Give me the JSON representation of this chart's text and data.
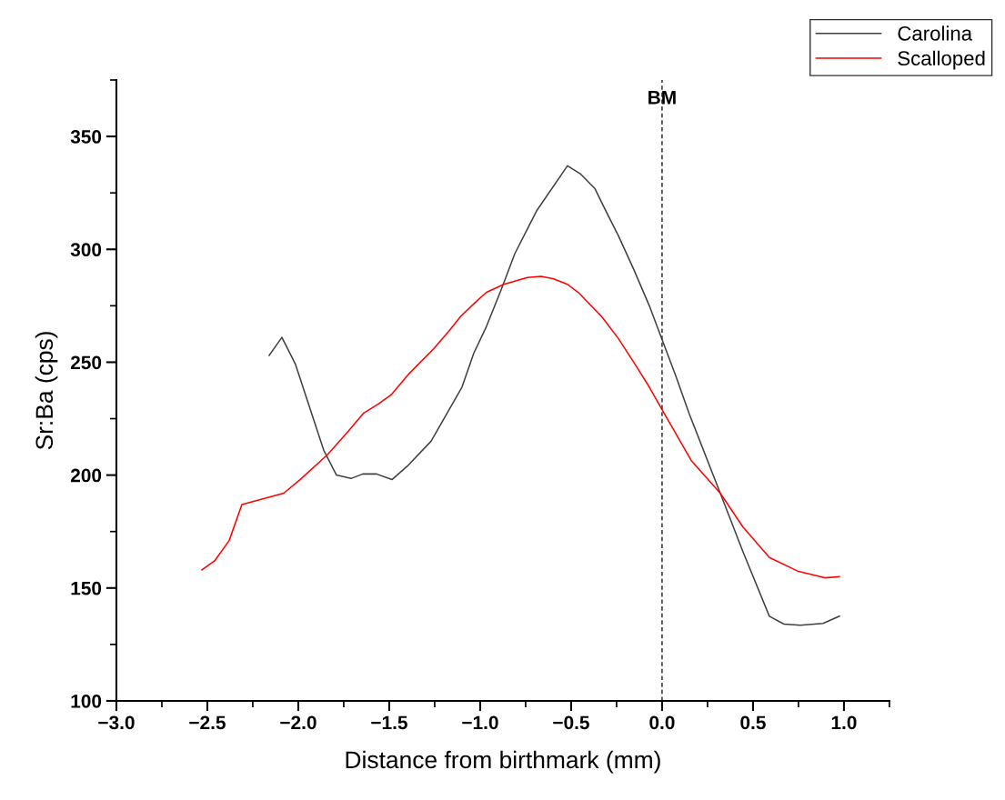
{
  "chart_data": {
    "type": "line",
    "xlabel": "Distance from birthmark (mm)",
    "ylabel": "Sr:Ba (cps)",
    "xlim": [
      -3.0,
      1.25
    ],
    "ylim": [
      100,
      375
    ],
    "xticks": [
      {
        "value": -3.0,
        "label": "−3.0"
      },
      {
        "value": -2.5,
        "label": "−2.5"
      },
      {
        "value": -2.0,
        "label": "−2.0"
      },
      {
        "value": -1.5,
        "label": "−1.5"
      },
      {
        "value": -1.0,
        "label": "−1.0"
      },
      {
        "value": -0.5,
        "label": "−0.5"
      },
      {
        "value": 0.0,
        "label": "0.0"
      },
      {
        "value": 0.5,
        "label": "0.5"
      },
      {
        "value": 1.0,
        "label": "1.0"
      }
    ],
    "yticks": [
      100,
      150,
      200,
      250,
      300,
      350
    ],
    "legend": "top right",
    "grid": false,
    "marker": "none",
    "line_style": "solid",
    "ref_lines": [
      {
        "axis": "x",
        "value": 0.0,
        "label": "BM",
        "color": "#333333",
        "line_style": "dashed"
      }
    ],
    "series": [
      {
        "name": "Carolina",
        "color": "#404040",
        "x": [
          -2.16,
          -2.09,
          -2.015,
          -1.86,
          -1.79,
          -1.71,
          -1.645,
          -1.57,
          -1.485,
          -1.4,
          -1.27,
          -1.185,
          -1.1,
          -1.035,
          -0.97,
          -0.885,
          -0.81,
          -0.69,
          -0.52,
          -0.45,
          -0.37,
          -0.315,
          -0.24,
          -0.155,
          -0.07,
          0.0,
          0.075,
          0.15,
          0.32,
          0.445,
          0.59,
          0.67,
          0.76,
          0.885,
          0.975
        ],
        "values": [
          253,
          261,
          249,
          211,
          200,
          198.5,
          200.5,
          200.5,
          198,
          204,
          215,
          227,
          239,
          254,
          265,
          282,
          298,
          317,
          337,
          333.5,
          327,
          318,
          306,
          291,
          275,
          260,
          244,
          227,
          192,
          166,
          137.5,
          134,
          133.5,
          134.3,
          137.5
        ]
      },
      {
        "name": "Scalloped",
        "color": "#ff0000",
        "x": [
          -2.53,
          -2.46,
          -2.38,
          -2.31,
          -2.08,
          -1.99,
          -1.84,
          -1.73,
          -1.64,
          -1.56,
          -1.49,
          -1.39,
          -1.255,
          -1.17,
          -1.105,
          -1.02,
          -0.965,
          -0.87,
          -0.74,
          -0.665,
          -0.6,
          -0.52,
          -0.455,
          -0.33,
          -0.24,
          -0.14,
          -0.07,
          0.0,
          0.16,
          0.32,
          0.445,
          0.59,
          0.745,
          0.895,
          0.975
        ],
        "values": [
          158,
          162,
          171,
          187,
          192,
          198,
          209,
          219,
          227.5,
          231.5,
          235.5,
          245,
          256,
          264,
          270.5,
          277,
          281,
          284.5,
          287.5,
          288,
          287,
          284.5,
          280.5,
          270,
          260.5,
          248,
          239,
          229,
          206.5,
          192,
          177,
          163.5,
          157.5,
          154.5,
          155
        ]
      }
    ]
  }
}
